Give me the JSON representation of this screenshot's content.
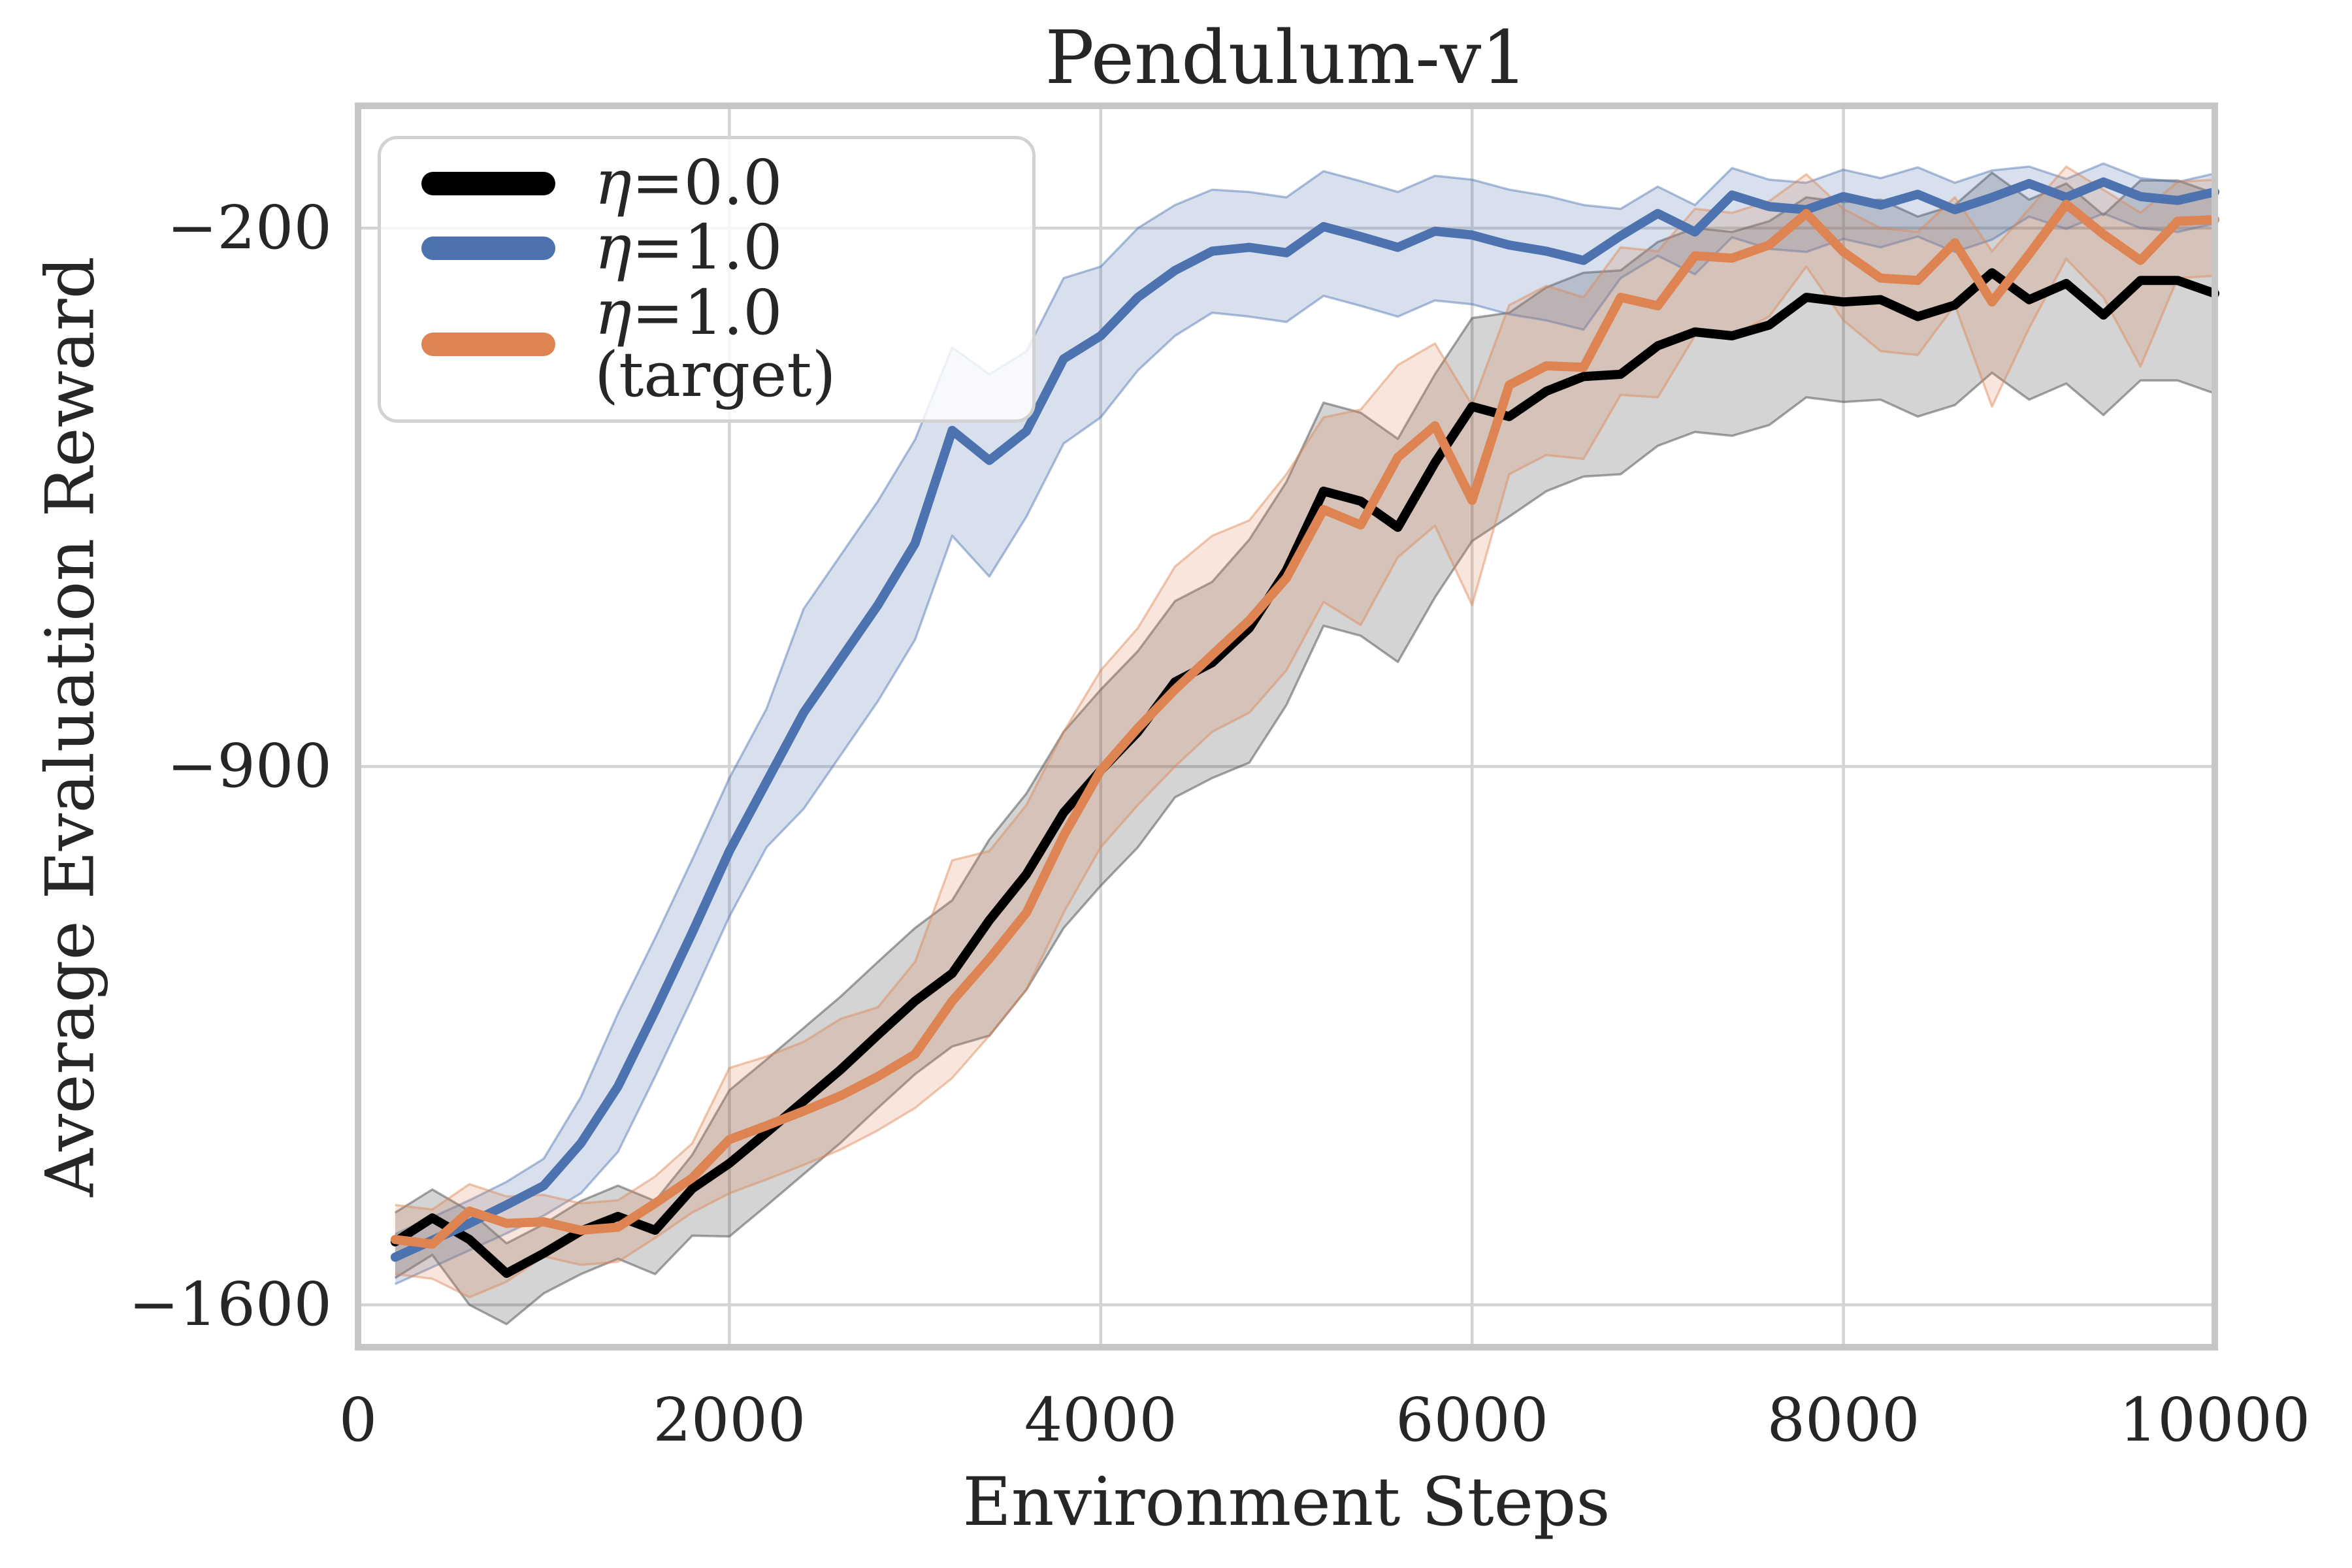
{
  "chart_data": {
    "type": "line",
    "title": "Pendulum-v1",
    "xlabel": "Environment Steps",
    "ylabel": "Average Evaluation Reward",
    "xlim": [
      0,
      10000
    ],
    "ylim": [
      -1655,
      -41
    ],
    "grid": true,
    "legend_position": "upper left",
    "background": "#ffffff",
    "grid_color": "#d4d4d4",
    "spine_color": "#c6c6c6",
    "text_color": "#262626",
    "xticks": [
      {
        "label": "0",
        "value": 0
      },
      {
        "label": "2000",
        "value": 2000
      },
      {
        "label": "4000",
        "value": 4000
      },
      {
        "label": "6000",
        "value": 6000
      },
      {
        "label": "8000",
        "value": 8000
      },
      {
        "label": "10000",
        "value": 10000
      }
    ],
    "yticks": [
      {
        "label": "−200",
        "value": -200
      },
      {
        "label": "−900",
        "value": -900
      },
      {
        "label": "−1600",
        "value": -1600
      }
    ],
    "x": [
      200,
      400,
      600,
      800,
      1000,
      1200,
      1400,
      1600,
      1800,
      2000,
      2200,
      2400,
      2600,
      2800,
      3000,
      3200,
      3400,
      3600,
      3800,
      4000,
      4200,
      4400,
      4600,
      4800,
      5000,
      5200,
      5400,
      5600,
      5800,
      6000,
      6200,
      6400,
      6600,
      6800,
      7000,
      7200,
      7400,
      7600,
      7800,
      8000,
      8200,
      8400,
      8600,
      8800,
      9000,
      9200,
      9400,
      9600,
      9800,
      10000
    ],
    "series": [
      {
        "name": "η=0.0",
        "color": "#000000",
        "band_fill": "rgba(40,40,40,0.20)",
        "band_edge": "rgba(90,90,90,0.55)",
        "values": [
          -1518,
          -1487,
          -1515,
          -1559,
          -1533,
          -1504,
          -1485,
          -1503,
          -1449,
          -1416,
          -1376,
          -1335,
          -1294,
          -1249,
          -1205,
          -1169,
          -1100,
          -1040,
          -960,
          -905,
          -855,
          -790,
          -765,
          -720,
          -645,
          -542,
          -555,
          -589,
          -505,
          -432,
          -445,
          -412,
          -393,
          -390,
          -353,
          -335,
          -340,
          -326,
          -290,
          -296,
          -293,
          -315,
          -300,
          -258,
          -293,
          -272,
          -313,
          -268,
          -268,
          -285
        ],
        "lower": [
          -1565,
          -1535,
          -1600,
          -1625,
          -1585,
          -1560,
          -1540,
          -1560,
          -1510,
          -1511,
          -1471,
          -1430,
          -1389,
          -1344,
          -1300,
          -1264,
          -1250,
          -1190,
          -1110,
          -1055,
          -1005,
          -940,
          -915,
          -895,
          -820,
          -717,
          -730,
          -764,
          -680,
          -607,
          -575,
          -542,
          -523,
          -520,
          -483,
          -465,
          -470,
          -456,
          -420,
          -426,
          -423,
          -445,
          -430,
          -388,
          -423,
          -402,
          -443,
          -398,
          -398,
          -415
        ],
        "upper": [
          -1480,
          -1450,
          -1478,
          -1520,
          -1495,
          -1465,
          -1445,
          -1465,
          -1405,
          -1321,
          -1281,
          -1240,
          -1199,
          -1154,
          -1110,
          -1074,
          -995,
          -935,
          -855,
          -800,
          -750,
          -685,
          -660,
          -605,
          -530,
          -427,
          -440,
          -474,
          -390,
          -317,
          -310,
          -277,
          -258,
          -255,
          -218,
          -200,
          -205,
          -191,
          -160,
          -166,
          -163,
          -185,
          -170,
          -128,
          -163,
          -142,
          -183,
          -138,
          -138,
          -155
        ]
      },
      {
        "name": "η=1.0",
        "color": "#4C72B0",
        "band_fill": "rgba(76,114,176,0.22)",
        "band_edge": "rgba(76,114,176,0.45)",
        "values": [
          -1538,
          -1516,
          -1494,
          -1470,
          -1445,
          -1390,
          -1316,
          -1218,
          -1116,
          -1010,
          -920,
          -830,
          -760,
          -690,
          -610,
          -463,
          -502,
          -464,
          -370,
          -340,
          -290,
          -255,
          -230,
          -225,
          -232,
          -198,
          -211,
          -225,
          -204,
          -209,
          -222,
          -230,
          -242,
          -210,
          -181,
          -205,
          -157,
          -172,
          -176,
          -159,
          -170,
          -156,
          -176,
          -160,
          -142,
          -160,
          -140,
          -159,
          -164,
          -153
        ],
        "lower": [
          -1573,
          -1551,
          -1529,
          -1507,
          -1484,
          -1455,
          -1401,
          -1303,
          -1201,
          -1095,
          -1005,
          -955,
          -885,
          -815,
          -735,
          -600,
          -653,
          -575,
          -480,
          -446,
          -385,
          -340,
          -310,
          -315,
          -322,
          -288,
          -301,
          -315,
          -294,
          -299,
          -312,
          -320,
          -332,
          -265,
          -236,
          -260,
          -212,
          -227,
          -231,
          -214,
          -225,
          -211,
          -231,
          -215,
          -185,
          -201,
          -181,
          -200,
          -205,
          -194
        ],
        "upper": [
          -1508,
          -1486,
          -1464,
          -1440,
          -1410,
          -1330,
          -1221,
          -1123,
          -1021,
          -915,
          -825,
          -695,
          -625,
          -555,
          -475,
          -355,
          -390,
          -360,
          -265,
          -250,
          -200,
          -170,
          -150,
          -153,
          -160,
          -126,
          -139,
          -153,
          -132,
          -137,
          -150,
          -158,
          -170,
          -175,
          -146,
          -170,
          -122,
          -137,
          -141,
          -124,
          -135,
          -121,
          -141,
          -125,
          -120,
          -136,
          -116,
          -135,
          -140,
          -129
        ]
      },
      {
        "name": "η=1.0 (target)",
        "color": "#DD8452",
        "band_fill": "rgba(221,132,82,0.20)",
        "band_edge": "rgba(221,132,82,0.45)",
        "values": [
          -1515,
          -1521,
          -1478,
          -1494,
          -1492,
          -1503,
          -1499,
          -1468,
          -1435,
          -1385,
          -1367,
          -1348,
          -1328,
          -1303,
          -1274,
          -1205,
          -1150,
          -1090,
          -990,
          -905,
          -850,
          -800,
          -755,
          -710,
          -655,
          -566,
          -586,
          -498,
          -457,
          -554,
          -404,
          -379,
          -381,
          -290,
          -301,
          -236,
          -239,
          -222,
          -181,
          -231,
          -265,
          -268,
          -219,
          -296,
          -234,
          -169,
          -208,
          -242,
          -191,
          -189
        ],
        "lower": [
          -1560,
          -1566,
          -1590,
          -1570,
          -1537,
          -1548,
          -1544,
          -1513,
          -1480,
          -1455,
          -1437,
          -1418,
          -1398,
          -1373,
          -1344,
          -1305,
          -1250,
          -1190,
          -1090,
          -1005,
          -950,
          -900,
          -855,
          -830,
          -775,
          -686,
          -716,
          -628,
          -587,
          -690,
          -520,
          -495,
          -500,
          -417,
          -420,
          -340,
          -340,
          -315,
          -250,
          -320,
          -360,
          -365,
          -300,
          -432,
          -330,
          -240,
          -290,
          -380,
          -265,
          -262
        ],
        "upper": [
          -1470,
          -1476,
          -1443,
          -1459,
          -1457,
          -1468,
          -1464,
          -1433,
          -1390,
          -1292,
          -1277,
          -1258,
          -1228,
          -1213,
          -1154,
          -1022,
          -1010,
          -950,
          -855,
          -775,
          -720,
          -640,
          -600,
          -580,
          -520,
          -446,
          -436,
          -378,
          -350,
          -430,
          -300,
          -275,
          -290,
          -225,
          -230,
          -175,
          -180,
          -165,
          -130,
          -175,
          -200,
          -205,
          -160,
          -230,
          -175,
          -120,
          -150,
          -180,
          -140,
          -137
        ]
      }
    ]
  },
  "legend": {
    "items": [
      {
        "symbol": "η",
        "text": "=0.0"
      },
      {
        "symbol": "η",
        "text": "=1.0"
      },
      {
        "symbol": "η",
        "text": "=1.0 (target)"
      }
    ]
  }
}
